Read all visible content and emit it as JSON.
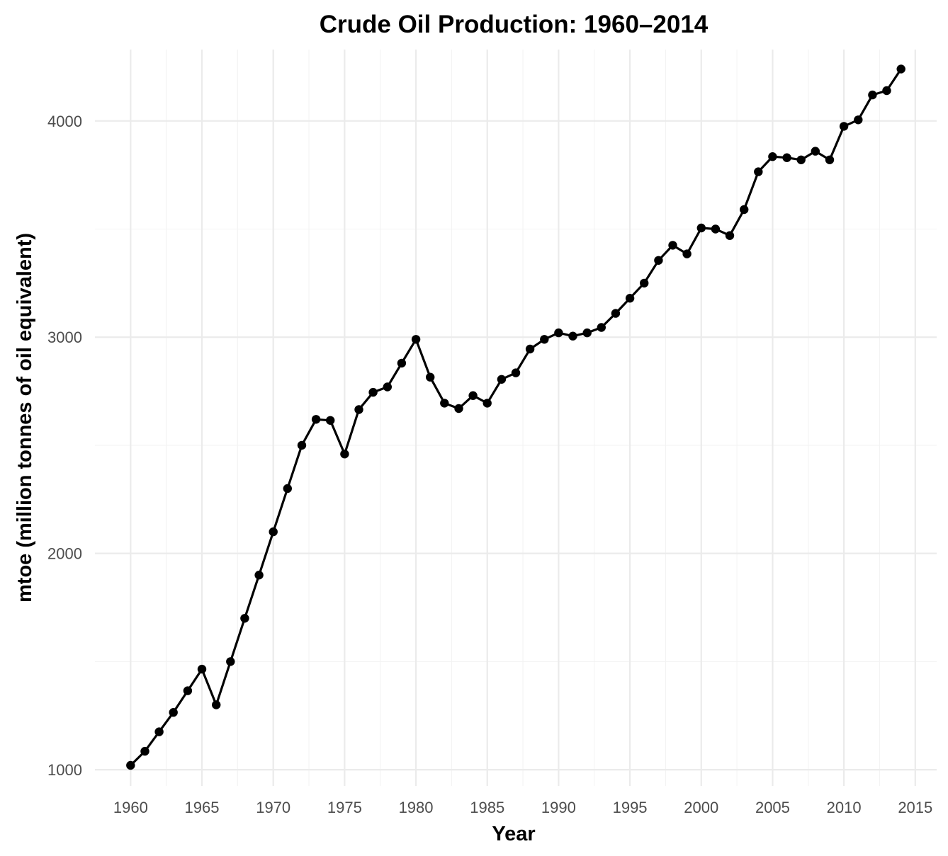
{
  "chart_data": {
    "type": "line",
    "title": "Crude Oil Production: 1960–2014",
    "xlabel": "Year",
    "ylabel": "mtoe (million tonnes of oil equivalent)",
    "xlim": [
      1957.5,
      2016.5
    ],
    "ylim": [
      925,
      4330
    ],
    "x_ticks": [
      1960,
      1965,
      1970,
      1975,
      1980,
      1985,
      1990,
      1995,
      2000,
      2005,
      2010,
      2015
    ],
    "y_ticks": [
      1000,
      2000,
      3000,
      4000
    ],
    "grid": true,
    "legend": "none",
    "series": [
      {
        "color": "#000000",
        "x": [
          1960,
          1961,
          1962,
          1963,
          1964,
          1965,
          1966,
          1967,
          1968,
          1969,
          1970,
          1971,
          1972,
          1973,
          1974,
          1975,
          1976,
          1977,
          1978,
          1979,
          1980,
          1981,
          1982,
          1983,
          1984,
          1985,
          1986,
          1987,
          1988,
          1989,
          1990,
          1991,
          1992,
          1993,
          1994,
          1995,
          1996,
          1997,
          1998,
          1999,
          2000,
          2001,
          2002,
          2003,
          2004,
          2005,
          2006,
          2007,
          2008,
          2009,
          2010,
          2011,
          2012,
          2013,
          2014
        ],
        "y": [
          1020,
          1085,
          1175,
          1265,
          1365,
          1465,
          1300,
          1500,
          1700,
          1900,
          2100,
          2300,
          2500,
          2620,
          2615,
          2460,
          2665,
          2745,
          2770,
          2880,
          2990,
          2815,
          2695,
          2670,
          2730,
          2695,
          2805,
          2835,
          2945,
          2990,
          3020,
          3005,
          3020,
          3045,
          3110,
          3180,
          3250,
          3355,
          3425,
          3385,
          3505,
          3500,
          3470,
          3590,
          3765,
          3835,
          3830,
          3820,
          3860,
          3820,
          3975,
          4005,
          4120,
          4140,
          4240
        ]
      }
    ]
  }
}
